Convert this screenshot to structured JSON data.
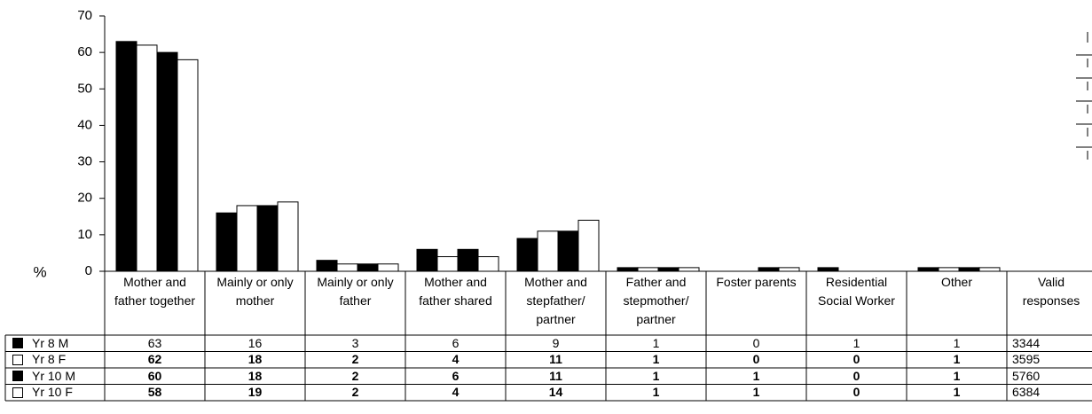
{
  "chart_data": {
    "type": "bar",
    "y_label": "%",
    "categories": [
      "Mother and father together",
      "Mainly or only mother",
      "Mainly or only father",
      "Mother and father shared",
      "Mother and stepfather/ partner",
      "Father and stepmother/ partner",
      "Foster parents",
      "Residential Social Worker",
      "Other"
    ],
    "series": [
      {
        "name": "Yr 8 M",
        "color": "#000000",
        "values": [
          63,
          16,
          3,
          6,
          9,
          1,
          0,
          1,
          1
        ],
        "valid": 3344
      },
      {
        "name": "Yr 8 F",
        "color": "#ffffff",
        "values": [
          62,
          18,
          2,
          4,
          11,
          1,
          0,
          0,
          1
        ],
        "valid": 3595
      },
      {
        "name": "Yr 10 M",
        "color": "#000000",
        "values": [
          60,
          18,
          2,
          6,
          11,
          1,
          1,
          0,
          1
        ],
        "valid": 5760
      },
      {
        "name": "Yr 10 F",
        "color": "#ffffff",
        "values": [
          58,
          19,
          2,
          4,
          14,
          1,
          1,
          0,
          1
        ],
        "valid": 6384
      }
    ],
    "valid_label": "Valid responses",
    "ylim": [
      0,
      70
    ],
    "yticks": [
      0,
      10,
      20,
      30,
      40,
      50,
      60,
      70
    ]
  }
}
